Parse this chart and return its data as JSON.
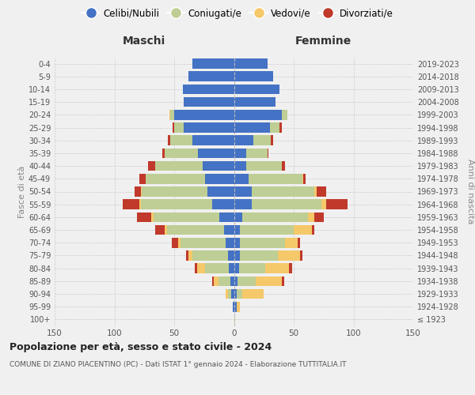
{
  "age_groups": [
    "100+",
    "95-99",
    "90-94",
    "85-89",
    "80-84",
    "75-79",
    "70-74",
    "65-69",
    "60-64",
    "55-59",
    "50-54",
    "45-49",
    "40-44",
    "35-39",
    "30-34",
    "25-29",
    "20-24",
    "15-19",
    "10-14",
    "5-9",
    "0-4"
  ],
  "birth_years": [
    "≤ 1923",
    "1924-1928",
    "1929-1933",
    "1934-1938",
    "1939-1943",
    "1944-1948",
    "1949-1953",
    "1954-1958",
    "1959-1963",
    "1964-1968",
    "1969-1973",
    "1974-1978",
    "1979-1983",
    "1984-1988",
    "1989-1993",
    "1994-1998",
    "1999-2003",
    "2004-2008",
    "2009-2013",
    "2014-2018",
    "2019-2023"
  ],
  "male_single": [
    0,
    1,
    2,
    3,
    4,
    5,
    7,
    8,
    12,
    18,
    22,
    24,
    26,
    30,
    35,
    42,
    50,
    42,
    43,
    38,
    35
  ],
  "male_married": [
    0,
    0,
    3,
    10,
    20,
    30,
    38,
    48,
    55,
    60,
    55,
    50,
    40,
    28,
    18,
    8,
    3,
    0,
    0,
    0,
    0
  ],
  "male_widowed": [
    0,
    0,
    2,
    4,
    7,
    3,
    2,
    2,
    2,
    1,
    1,
    0,
    0,
    0,
    0,
    0,
    1,
    0,
    0,
    0,
    0
  ],
  "male_divorced": [
    0,
    0,
    0,
    1,
    2,
    2,
    5,
    8,
    12,
    14,
    5,
    5,
    6,
    2,
    2,
    1,
    0,
    0,
    0,
    0,
    0
  ],
  "female_single": [
    0,
    2,
    2,
    3,
    4,
    5,
    5,
    5,
    7,
    15,
    15,
    12,
    10,
    10,
    16,
    30,
    40,
    35,
    38,
    33,
    28
  ],
  "female_married": [
    0,
    0,
    5,
    15,
    22,
    32,
    38,
    45,
    55,
    58,
    52,
    45,
    30,
    18,
    15,
    8,
    5,
    0,
    0,
    0,
    0
  ],
  "female_widowed": [
    1,
    3,
    18,
    22,
    20,
    18,
    10,
    15,
    5,
    4,
    2,
    1,
    0,
    0,
    0,
    0,
    0,
    0,
    0,
    0,
    0
  ],
  "female_divorced": [
    0,
    0,
    0,
    2,
    3,
    2,
    2,
    2,
    8,
    18,
    8,
    2,
    3,
    1,
    2,
    2,
    0,
    0,
    0,
    0,
    0
  ],
  "color_single": "#4472C4",
  "color_married": "#BECE94",
  "color_widowed": "#F5C86A",
  "color_divorced": "#C0392B",
  "legend_labels": [
    "Celibi/Nubili",
    "Coniugati/e",
    "Vedovi/e",
    "Divorziati/e"
  ],
  "title": "Popolazione per età, sesso e stato civile - 2024",
  "subtitle": "COMUNE DI ZIANO PIACENTINO (PC) - Dati ISTAT 1° gennaio 2024 - Elaborazione TUTTITALIA.IT",
  "label_maschi": "Maschi",
  "label_femmine": "Femmine",
  "label_fasce": "Fasce di età",
  "label_anni": "Anni di nascita",
  "xlim": 150,
  "bg_color": "#f0f0f0"
}
